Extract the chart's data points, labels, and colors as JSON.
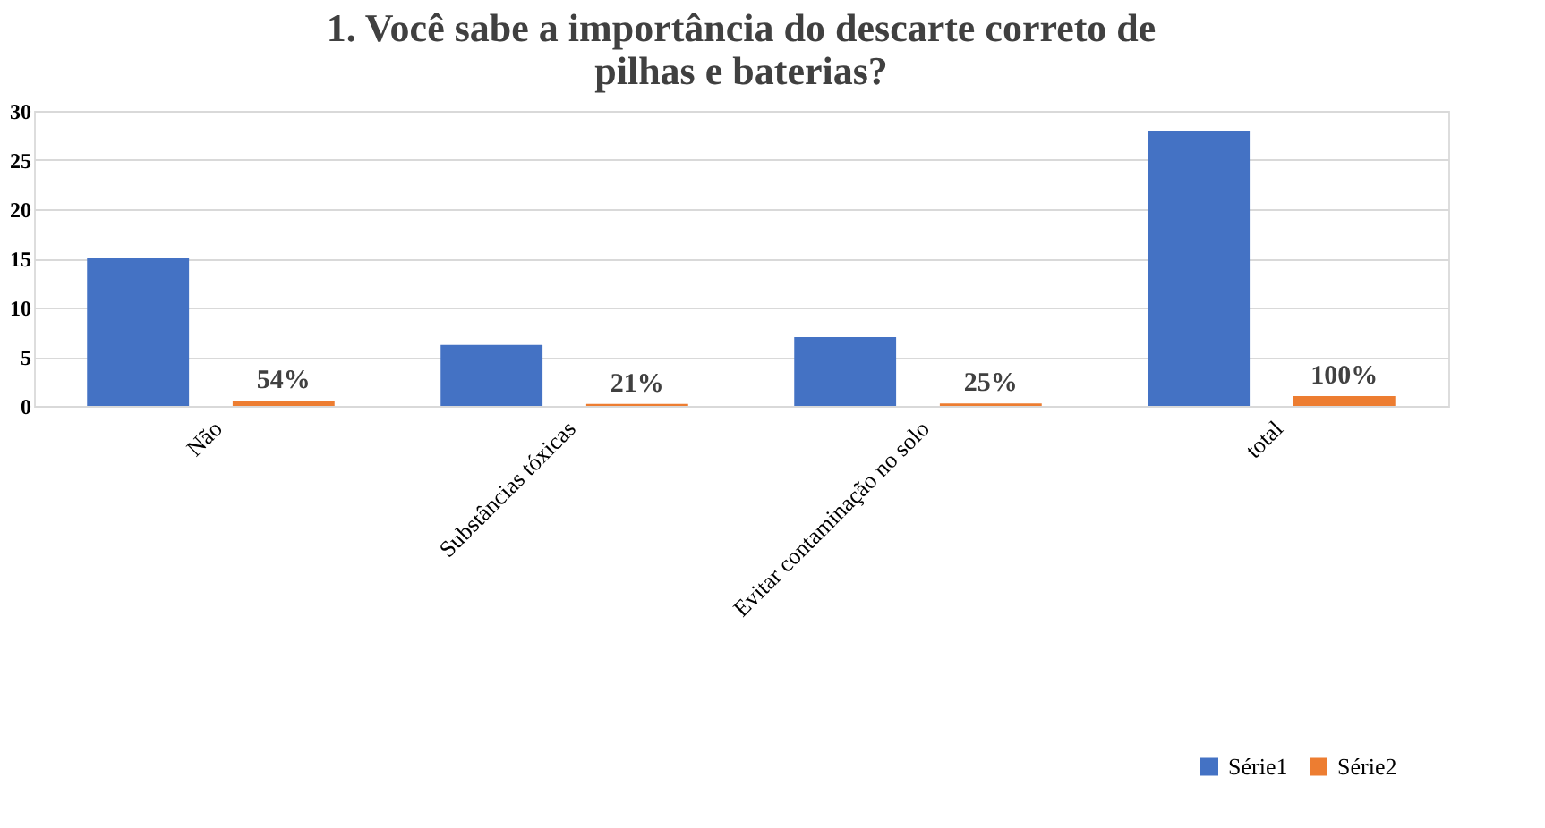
{
  "chart_data": {
    "type": "bar",
    "title": [
      "1. Você sabe a importância do descarte correto de",
      "pilhas e baterias?"
    ],
    "categories": [
      "Não",
      "Substâncias tóxicas",
      "Evitar contaminação no solo",
      "total"
    ],
    "series": [
      {
        "name": "Série1",
        "color": "#4472c4",
        "values": [
          15,
          6.2,
          7,
          28
        ]
      },
      {
        "name": "Série2",
        "color": "#ed7d31",
        "values": [
          0.54,
          0.21,
          0.25,
          1
        ],
        "value_labels": [
          "54%",
          "21%",
          "25%",
          "100%"
        ]
      }
    ],
    "ylim": [
      0,
      30
    ],
    "yticks": [
      0,
      5,
      10,
      15,
      20,
      25,
      30
    ],
    "grid": "y",
    "legend": "bottom right"
  }
}
